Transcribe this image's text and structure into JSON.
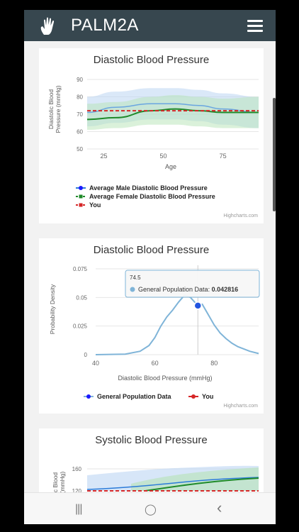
{
  "app": {
    "title": "PALM2A",
    "logo_icon": "hand-icon",
    "menu_icon": "hamburger-menu-icon"
  },
  "colors": {
    "appbar": "#37474f",
    "male": "#2b7bd9",
    "female": "#1f8a2a",
    "you": "#d62728",
    "population": "#7fb4d8"
  },
  "charts": [
    {
      "title": "Diastolic Blood Pressure",
      "xlabel": "Age",
      "ylabel": "Diastolic Blood Pressure (mmHg)",
      "ylabel_lines": [
        "Diastolic Blood",
        "Pressure (mmHg)"
      ],
      "x_ticks": [
        "25",
        "50",
        "75"
      ],
      "y_ticks": [
        "50",
        "60",
        "70",
        "80",
        "90"
      ],
      "legend": [
        "Average Male Diastolic Blood Pressure",
        "Average Female Diastolic Blood Pressure",
        "You"
      ],
      "credits": "Highcharts.com"
    },
    {
      "title": "Diastolic Blood Pressure",
      "xlabel": "Diastolic Blood Pressure (mmHg)",
      "ylabel": "Probability Density",
      "x_ticks": [
        "40",
        "60",
        "80"
      ],
      "y_ticks": [
        "0",
        "0.025",
        "0.05",
        "0.075"
      ],
      "legend": [
        "General Population Data",
        "You"
      ],
      "tooltip": {
        "x": "74.5",
        "series": "General Population Data: ",
        "value": "0.042816"
      },
      "credits": "Highcharts.com"
    },
    {
      "title": "Systolic Blood Pressure",
      "ylabel": "Systolic Blood Pressure (mmHg)",
      "ylabel_lines": [
        "c Blood",
        "(mmHg)"
      ],
      "y_ticks": [
        "160",
        "120"
      ]
    }
  ],
  "navbar": {
    "recent": "|||",
    "home": "◯",
    "back": "‹"
  },
  "chart_data": [
    {
      "type": "area",
      "title": "Diastolic Blood Pressure",
      "xlabel": "Age",
      "ylabel": "Diastolic Blood Pressure (mmHg)",
      "xlim": [
        18,
        90
      ],
      "ylim": [
        50,
        90
      ],
      "series": [
        {
          "name": "Average Male Diastolic Blood Pressure",
          "x": [
            18,
            30,
            45,
            55,
            65,
            75,
            90
          ],
          "values": [
            71,
            74,
            76,
            76,
            75,
            73,
            71
          ],
          "low": [
            63,
            65,
            67,
            67,
            66,
            64,
            62
          ],
          "high": [
            80,
            83,
            85,
            85,
            84,
            82,
            80
          ]
        },
        {
          "name": "Average Female Diastolic Blood Pressure",
          "x": [
            18,
            30,
            45,
            55,
            65,
            75,
            90
          ],
          "values": [
            67,
            68,
            72,
            73,
            72,
            71,
            71
          ],
          "low": [
            61,
            62,
            64,
            64,
            63,
            62,
            62
          ],
          "high": [
            76,
            77,
            80,
            81,
            80,
            79,
            80
          ]
        },
        {
          "name": "You",
          "x": [
            18,
            90
          ],
          "values": [
            72,
            72
          ]
        }
      ]
    },
    {
      "type": "line",
      "title": "Diastolic Blood Pressure",
      "xlabel": "Diastolic Blood Pressure (mmHg)",
      "ylabel": "Probability Density",
      "xlim": [
        40,
        95
      ],
      "ylim": [
        0,
        0.075
      ],
      "series": [
        {
          "name": "General Population Data",
          "x": [
            40,
            50,
            55,
            58,
            60,
            62,
            64,
            66,
            68,
            70,
            72,
            74.5,
            76,
            78,
            80,
            82,
            84,
            86,
            88,
            90,
            92,
            95
          ],
          "values": [
            0,
            0.0005,
            0.003,
            0.008,
            0.015,
            0.025,
            0.033,
            0.039,
            0.046,
            0.052,
            0.05,
            0.042816,
            0.044,
            0.035,
            0.026,
            0.019,
            0.014,
            0.01,
            0.007,
            0.005,
            0.003,
            0.001
          ]
        },
        {
          "name": "You",
          "x": [
            74.5
          ],
          "values": [
            0.042816
          ]
        }
      ]
    },
    {
      "type": "area",
      "title": "Systolic Blood Pressure",
      "ylabel": "Systolic Blood Pressure (mmHg)"
    }
  ]
}
